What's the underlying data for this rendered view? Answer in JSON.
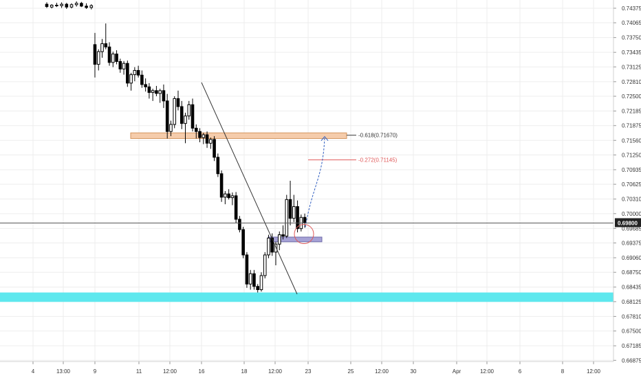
{
  "chart_data": {
    "type": "candlestick",
    "symbol_pair_note": "",
    "y_axis": {
      "ticks": [
        "0.74375",
        "0.74065",
        "0.73750",
        "0.73435",
        "0.73125",
        "0.72810",
        "0.72500",
        "0.72185",
        "0.71875",
        "0.71560",
        "0.71250",
        "0.70935",
        "0.70625",
        "0.70310",
        "0.70000",
        "0.69685",
        "0.69375",
        "0.69060",
        "0.68750",
        "0.68435",
        "0.68125",
        "0.67810",
        "0.67500",
        "0.67185",
        "0.66875"
      ],
      "range": [
        0.6685,
        0.7455
      ],
      "current_price_label": "0.69800"
    },
    "x_axis": {
      "ticks": [
        "4",
        "13:00",
        "9",
        "11",
        "12:00",
        "16",
        "18",
        "12:00",
        "23",
        "25",
        "12:00",
        "30",
        "Apr",
        "12:00",
        "6",
        "8",
        "12:00"
      ]
    },
    "candles": [
      [
        0.7446,
        0.745,
        0.7438,
        0.7441
      ],
      [
        0.744,
        0.7446,
        0.7437,
        0.7444
      ],
      [
        0.7444,
        0.7449,
        0.744,
        0.7443
      ],
      [
        0.7443,
        0.745,
        0.7438,
        0.7446
      ],
      [
        0.7446,
        0.7449,
        0.7436,
        0.744
      ],
      [
        0.744,
        0.7448,
        0.7437,
        0.7445
      ],
      [
        0.7445,
        0.7452,
        0.7441,
        0.7448
      ],
      [
        0.7448,
        0.7451,
        0.744,
        0.7442
      ],
      [
        0.7442,
        0.7448,
        0.7436,
        0.7439
      ],
      [
        0.7439,
        0.7446,
        0.7435,
        0.7443
      ],
      [
        0.736,
        0.7385,
        0.729,
        0.7318
      ],
      [
        0.7318,
        0.735,
        0.7305,
        0.7345
      ],
      [
        0.7345,
        0.7372,
        0.7332,
        0.7362
      ],
      [
        0.7362,
        0.7405,
        0.735,
        0.7355
      ],
      [
        0.7355,
        0.7365,
        0.7315,
        0.7322
      ],
      [
        0.7322,
        0.7345,
        0.7312,
        0.734
      ],
      [
        0.734,
        0.7348,
        0.7318,
        0.7324
      ],
      [
        0.7324,
        0.733,
        0.73,
        0.7308
      ],
      [
        0.7308,
        0.7325,
        0.7296,
        0.732
      ],
      [
        0.732,
        0.7326,
        0.727,
        0.7278
      ],
      [
        0.7278,
        0.73,
        0.7262,
        0.7296
      ],
      [
        0.7296,
        0.7312,
        0.7282,
        0.7305
      ],
      [
        0.7305,
        0.7315,
        0.729,
        0.7295
      ],
      [
        0.7295,
        0.7305,
        0.7268,
        0.7275
      ],
      [
        0.7275,
        0.7288,
        0.726,
        0.727
      ],
      [
        0.727,
        0.7278,
        0.7245,
        0.7258
      ],
      [
        0.7258,
        0.7266,
        0.724,
        0.7262
      ],
      [
        0.7262,
        0.7272,
        0.725,
        0.7256
      ],
      [
        0.7256,
        0.7266,
        0.7236,
        0.7262
      ],
      [
        0.7262,
        0.7275,
        0.7225,
        0.724
      ],
      [
        0.724,
        0.7255,
        0.716,
        0.7175
      ],
      [
        0.7175,
        0.7198,
        0.7165,
        0.719
      ],
      [
        0.719,
        0.725,
        0.7182,
        0.7245
      ],
      [
        0.7245,
        0.7262,
        0.722,
        0.7228
      ],
      [
        0.7228,
        0.724,
        0.718,
        0.7192
      ],
      [
        0.7192,
        0.7215,
        0.715,
        0.7208
      ],
      [
        0.7208,
        0.724,
        0.72,
        0.7232
      ],
      [
        0.7232,
        0.7245,
        0.7175,
        0.7182
      ],
      [
        0.7182,
        0.719,
        0.716,
        0.7175
      ],
      [
        0.7175,
        0.7182,
        0.7152,
        0.7162
      ],
      [
        0.7162,
        0.7172,
        0.7148,
        0.7168
      ],
      [
        0.7168,
        0.7175,
        0.714,
        0.715
      ],
      [
        0.715,
        0.7162,
        0.7138,
        0.7158
      ],
      [
        0.7158,
        0.7165,
        0.7112,
        0.712
      ],
      [
        0.712,
        0.7128,
        0.7078,
        0.7085
      ],
      [
        0.7085,
        0.7092,
        0.7025,
        0.7035
      ],
      [
        0.7035,
        0.7048,
        0.702,
        0.7042
      ],
      [
        0.7042,
        0.7052,
        0.703,
        0.7034
      ],
      [
        0.7034,
        0.7045,
        0.7018,
        0.7038
      ],
      [
        0.7038,
        0.7046,
        0.698,
        0.6988
      ],
      [
        0.6988,
        0.6995,
        0.696,
        0.6966
      ],
      [
        0.6966,
        0.6972,
        0.6905,
        0.6912
      ],
      [
        0.6912,
        0.6918,
        0.6842,
        0.685
      ],
      [
        0.685,
        0.688,
        0.6838,
        0.6872
      ],
      [
        0.6872,
        0.688,
        0.6838,
        0.6845
      ],
      [
        0.6845,
        0.685,
        0.6832,
        0.6838
      ],
      [
        0.6838,
        0.6875,
        0.6834,
        0.6868
      ],
      [
        0.6868,
        0.6918,
        0.6862,
        0.6912
      ],
      [
        0.6912,
        0.6955,
        0.6905,
        0.6948
      ],
      [
        0.6948,
        0.6958,
        0.691,
        0.6918
      ],
      [
        0.6918,
        0.694,
        0.689,
        0.6935
      ],
      [
        0.6935,
        0.6962,
        0.6922,
        0.6955
      ],
      [
        0.6955,
        0.6975,
        0.6945,
        0.6952
      ],
      [
        0.6952,
        0.704,
        0.6948,
        0.703
      ],
      [
        0.703,
        0.707,
        0.6975,
        0.699
      ],
      [
        0.699,
        0.704,
        0.6982,
        0.7015
      ],
      [
        0.7015,
        0.7028,
        0.696,
        0.6968
      ],
      [
        0.6968,
        0.6998,
        0.6962,
        0.6992
      ],
      [
        0.6992,
        0.7,
        0.697,
        0.698
      ]
    ],
    "annotations": {
      "resistance_zone": [
        0.716,
        0.7172
      ],
      "support_zone": [
        0.6812,
        0.6832
      ],
      "entry_zone": [
        0.694,
        0.695
      ],
      "fib_0618": {
        "price": 0.7167,
        "label": "-0.618(0.71670)"
      },
      "fib_0272": {
        "price": 0.71145,
        "label": "-0.272(0.71145)"
      },
      "current_price": 0.698
    },
    "colors": {
      "candle": "#000000",
      "resistance_fill": "#f5ccab",
      "resistance_border": "#d4955e",
      "support_fill": "#5ee8ee",
      "entry_fill": "#a6a2d6",
      "arrow": "#2d5cc0",
      "circle": "#e05a5a",
      "fib_0272_line": "#e05a5a",
      "grid": "#ededed"
    }
  }
}
